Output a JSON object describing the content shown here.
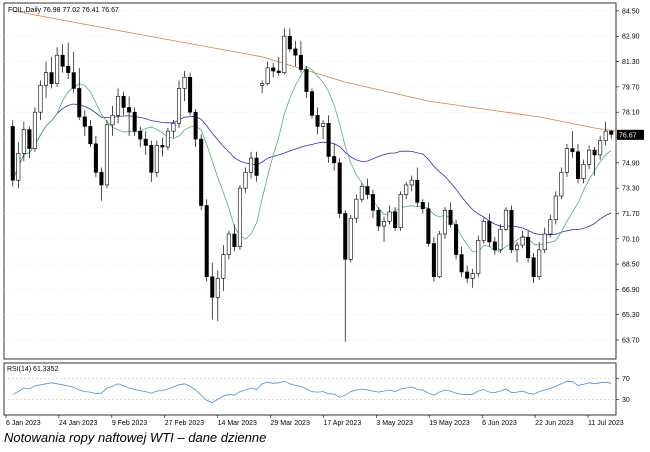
{
  "caption": "Notowania ropy naftowej WTI – dane dzienne",
  "chart_data": [
    {
      "type": "candlestick",
      "header": "FOIL,Daily  76.98 77.02 76.41 76.67",
      "last_price_label": "76.67",
      "ylim": [
        62.5,
        85.0
      ],
      "y_ticks": [
        "84.50",
        "82.90",
        "81.30",
        "79.70",
        "78.10",
        "76.50",
        "74.90",
        "73.30",
        "71.70",
        "70.10",
        "68.50",
        "66.90",
        "65.30",
        "63.70"
      ],
      "x_labels": [
        "6 Jan 2023",
        "24 Jan 2023",
        "9 Feb 2023",
        "27 Feb 2023",
        "14 Mar 2023",
        "29 Mar 2023",
        "17 Apr 2023",
        "3 May 2023",
        "19 May 2023",
        "6 Jun 2023",
        "22 Jun 2023",
        "11 Jul 2023"
      ],
      "colors": {
        "up": "#ffffff",
        "down": "#000000",
        "fast_ma": "#4caf7d",
        "slow_ma": "#2f2fbf",
        "long_ma": "#e07b39"
      },
      "candles": [
        [
          77.2,
          77.6,
          73.4,
          73.8
        ],
        [
          73.8,
          76.2,
          73.3,
          75.5
        ],
        [
          75.5,
          77.5,
          75.0,
          77.0
        ],
        [
          77.0,
          77.2,
          75.2,
          75.8
        ],
        [
          75.8,
          78.4,
          75.6,
          78.1
        ],
        [
          78.1,
          80.1,
          77.6,
          79.8
        ],
        [
          79.8,
          81.3,
          79.0,
          80.6
        ],
        [
          80.6,
          81.6,
          79.6,
          79.9
        ],
        [
          79.9,
          82.2,
          79.7,
          81.7
        ],
        [
          81.7,
          82.4,
          80.6,
          81.0
        ],
        [
          81.0,
          82.5,
          80.2,
          80.6
        ],
        [
          80.6,
          81.9,
          79.3,
          79.6
        ],
        [
          79.6,
          80.9,
          77.6,
          77.8
        ],
        [
          77.8,
          78.2,
          76.6,
          77.2
        ],
        [
          77.2,
          77.6,
          75.9,
          76.1
        ],
        [
          76.1,
          76.6,
          74.0,
          74.3
        ],
        [
          74.3,
          74.6,
          72.5,
          73.5
        ],
        [
          73.5,
          77.6,
          73.3,
          77.3
        ],
        [
          77.3,
          78.5,
          76.6,
          77.9
        ],
        [
          77.9,
          79.6,
          77.4,
          79.1
        ],
        [
          79.1,
          79.4,
          77.9,
          78.4
        ],
        [
          78.4,
          79.1,
          76.6,
          78.1
        ],
        [
          78.1,
          78.4,
          76.6,
          76.9
        ],
        [
          76.9,
          77.2,
          75.9,
          76.4
        ],
        [
          76.4,
          76.9,
          75.4,
          76.0
        ],
        [
          76.0,
          76.3,
          73.7,
          74.3
        ],
        [
          74.3,
          76.3,
          74.0,
          76.0
        ],
        [
          76.0,
          76.5,
          75.3,
          75.9
        ],
        [
          75.9,
          77.1,
          75.7,
          76.9
        ],
        [
          76.9,
          77.6,
          76.5,
          77.4
        ],
        [
          77.4,
          80.1,
          77.1,
          79.6
        ],
        [
          79.6,
          80.7,
          78.8,
          80.3
        ],
        [
          80.3,
          80.6,
          77.9,
          78.1
        ],
        [
          78.1,
          78.3,
          75.9,
          76.4
        ],
        [
          76.4,
          76.7,
          71.9,
          72.2
        ],
        [
          72.2,
          72.6,
          67.4,
          67.7
        ],
        [
          67.7,
          68.6,
          65.0,
          66.4
        ],
        [
          66.4,
          68.1,
          64.9,
          67.6
        ],
        [
          67.6,
          69.7,
          66.8,
          69.1
        ],
        [
          69.1,
          70.6,
          68.8,
          70.4
        ],
        [
          70.4,
          71.0,
          69.3,
          69.6
        ],
        [
          69.6,
          73.5,
          69.4,
          73.3
        ],
        [
          73.3,
          74.6,
          73.0,
          74.3
        ],
        [
          74.3,
          75.6,
          73.9,
          75.2
        ],
        [
          75.2,
          75.6,
          73.7,
          74.1
        ],
        [
          79.8,
          80.1,
          79.3,
          79.9
        ],
        [
          79.9,
          81.3,
          79.8,
          80.9
        ],
        [
          80.9,
          81.2,
          80.3,
          80.7
        ],
        [
          80.7,
          81.6,
          80.4,
          80.6
        ],
        [
          80.6,
          83.4,
          80.5,
          82.9
        ],
        [
          82.9,
          83.4,
          81.9,
          82.1
        ],
        [
          82.1,
          82.6,
          81.0,
          81.7
        ],
        [
          81.7,
          82.6,
          80.6,
          80.8
        ],
        [
          80.8,
          81.0,
          79.0,
          79.4
        ],
        [
          79.4,
          79.6,
          77.7,
          77.9
        ],
        [
          77.9,
          78.4,
          76.7,
          77.2
        ],
        [
          77.2,
          77.6,
          76.4,
          77.4
        ],
        [
          77.4,
          77.9,
          74.9,
          75.3
        ],
        [
          75.3,
          76.1,
          74.4,
          74.9
        ],
        [
          74.9,
          75.2,
          71.4,
          71.7
        ],
        [
          71.7,
          71.9,
          63.6,
          68.8
        ],
        [
          68.8,
          71.6,
          68.6,
          71.4
        ],
        [
          71.4,
          72.9,
          71.1,
          72.6
        ],
        [
          72.6,
          73.6,
          72.4,
          73.4
        ],
        [
          73.4,
          73.9,
          72.6,
          72.9
        ],
        [
          72.9,
          73.2,
          71.4,
          71.9
        ],
        [
          71.9,
          72.1,
          70.6,
          70.9
        ],
        [
          70.9,
          71.5,
          69.9,
          71.2
        ],
        [
          71.2,
          72.2,
          71.0,
          71.8
        ],
        [
          71.8,
          72.1,
          70.6,
          70.8
        ],
        [
          70.8,
          73.1,
          70.6,
          72.9
        ],
        [
          72.9,
          73.7,
          72.6,
          73.5
        ],
        [
          73.5,
          74.1,
          73.1,
          73.8
        ],
        [
          73.8,
          74.6,
          72.1,
          72.4
        ],
        [
          72.4,
          72.6,
          71.7,
          72.0
        ],
        [
          72.0,
          72.4,
          69.6,
          69.8
        ],
        [
          69.8,
          70.2,
          67.4,
          67.7
        ],
        [
          67.7,
          70.6,
          67.6,
          70.4
        ],
        [
          70.4,
          72.1,
          70.1,
          71.9
        ],
        [
          71.9,
          72.4,
          70.8,
          71.0
        ],
        [
          71.0,
          71.3,
          68.8,
          69.1
        ],
        [
          69.1,
          69.6,
          67.7,
          68.0
        ],
        [
          68.0,
          68.4,
          67.3,
          67.6
        ],
        [
          67.6,
          68.2,
          67.0,
          67.9
        ],
        [
          67.9,
          70.3,
          67.7,
          70.0
        ],
        [
          70.0,
          71.4,
          69.8,
          71.2
        ],
        [
          71.2,
          71.7,
          69.6,
          69.9
        ],
        [
          69.9,
          70.2,
          69.1,
          69.4
        ],
        [
          69.4,
          71.0,
          69.2,
          70.7
        ],
        [
          70.7,
          72.1,
          70.6,
          71.9
        ],
        [
          71.9,
          72.2,
          69.2,
          69.4
        ],
        [
          69.4,
          69.9,
          68.6,
          69.7
        ],
        [
          69.7,
          70.6,
          69.5,
          70.2
        ],
        [
          70.2,
          70.6,
          68.6,
          68.9
        ],
        [
          68.9,
          69.2,
          67.3,
          67.7
        ],
        [
          67.7,
          69.9,
          67.5,
          69.4
        ],
        [
          69.4,
          70.8,
          69.2,
          70.4
        ],
        [
          70.4,
          71.6,
          70.2,
          71.3
        ],
        [
          71.3,
          73.1,
          71.0,
          72.8
        ],
        [
          72.8,
          74.6,
          72.6,
          74.3
        ],
        [
          74.3,
          76.1,
          74.0,
          75.8
        ],
        [
          75.8,
          76.9,
          75.2,
          75.6
        ],
        [
          75.6,
          76.1,
          73.6,
          73.9
        ],
        [
          73.9,
          75.1,
          73.6,
          74.8
        ],
        [
          74.8,
          76.0,
          74.5,
          75.7
        ],
        [
          75.7,
          75.9,
          74.1,
          75.4
        ],
        [
          75.4,
          76.6,
          75.1,
          76.3
        ],
        [
          76.3,
          77.5,
          76.0,
          76.9
        ],
        [
          76.9,
          77.0,
          76.4,
          76.7
        ]
      ],
      "long_ma": [
        [
          0,
          84.5
        ],
        [
          20,
          83.2
        ],
        [
          45,
          81.6
        ],
        [
          60,
          80.0
        ],
        [
          75,
          78.8
        ],
        [
          95,
          77.8
        ],
        [
          105,
          77.1
        ],
        [
          109,
          76.9
        ]
      ],
      "rsi": {
        "label": "RSI(14) 61.3352",
        "ylim": [
          0,
          100
        ],
        "levels": [
          "70",
          "30"
        ],
        "values": [
          40,
          45,
          52,
          50,
          56,
          58,
          60,
          62,
          60,
          58,
          56,
          53,
          48,
          45,
          44,
          41,
          42,
          52,
          55,
          60,
          56,
          52,
          49,
          47,
          45,
          42,
          46,
          47,
          50,
          54,
          58,
          60,
          55,
          48,
          38,
          28,
          24,
          30,
          36,
          40,
          38,
          45,
          48,
          52,
          49,
          60,
          63,
          61,
          62,
          65,
          60,
          57,
          55,
          50,
          45,
          44,
          45,
          41,
          40,
          34,
          38,
          45,
          48,
          50,
          48,
          46,
          44,
          46,
          48,
          45,
          50,
          52,
          54,
          49,
          48,
          42,
          38,
          44,
          48,
          46,
          42,
          40,
          39,
          40,
          46,
          49,
          44,
          43,
          46,
          50,
          43,
          44,
          46,
          42,
          40,
          45,
          48,
          51,
          55,
          60,
          65,
          64,
          57,
          59,
          62,
          60,
          62,
          63,
          61
        ]
      }
    }
  ]
}
